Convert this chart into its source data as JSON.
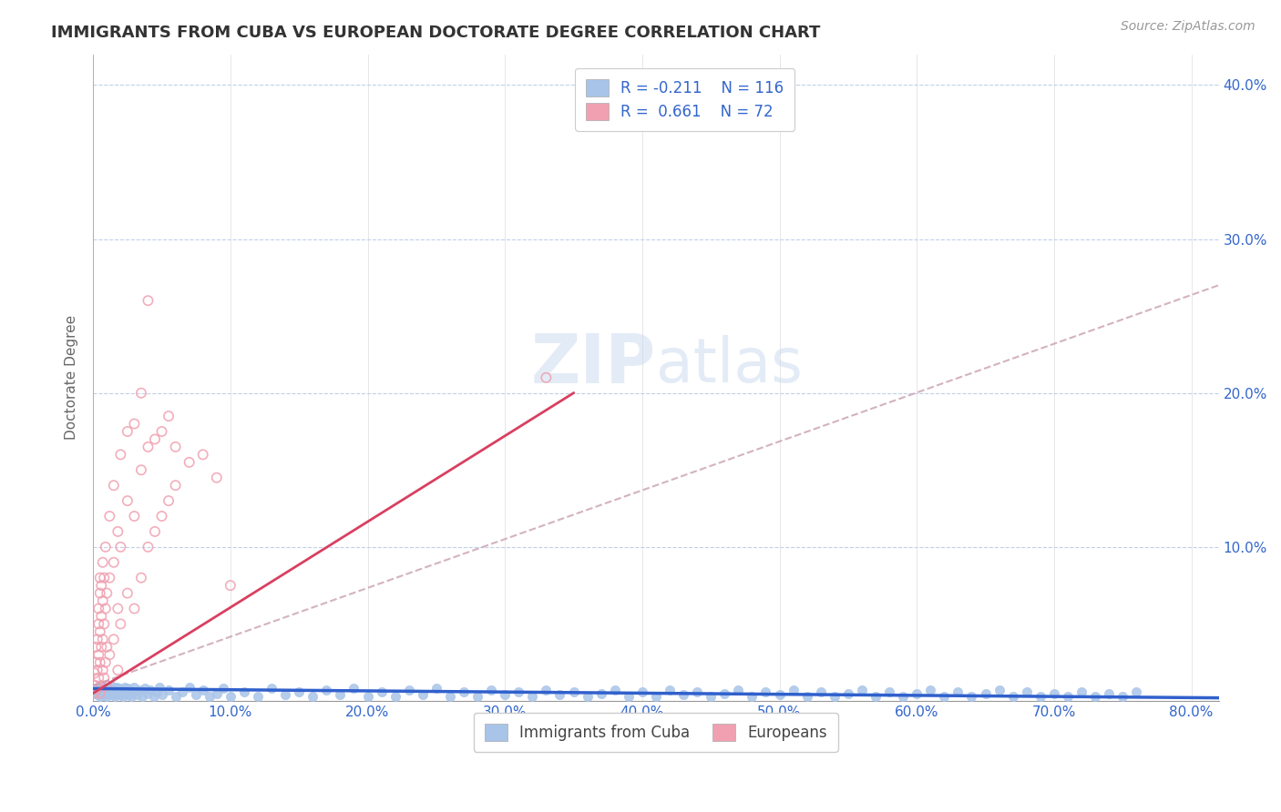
{
  "title": "IMMIGRANTS FROM CUBA VS EUROPEAN DOCTORATE DEGREE CORRELATION CHART",
  "source": "Source: ZipAtlas.com",
  "ylabel": "Doctorate Degree",
  "xlim": [
    0.0,
    0.82
  ],
  "ylim": [
    0.0,
    0.42
  ],
  "xticks": [
    0.0,
    0.1,
    0.2,
    0.3,
    0.4,
    0.5,
    0.6,
    0.7,
    0.8
  ],
  "yticks_right": [
    0.0,
    0.1,
    0.2,
    0.3,
    0.4
  ],
  "ytick_labels_right": [
    "",
    "10.0%",
    "20.0%",
    "30.0%",
    "40.0%"
  ],
  "xtick_labels": [
    "0.0%",
    "10.0%",
    "20.0%",
    "30.0%",
    "40.0%",
    "50.0%",
    "60.0%",
    "70.0%",
    "80.0%"
  ],
  "legend_labels": [
    "Immigrants from Cuba",
    "Europeans"
  ],
  "legend_R": [
    -0.211,
    0.661
  ],
  "legend_N": [
    116,
    72
  ],
  "blue_color": "#a8c4e8",
  "pink_color": "#f0a0b0",
  "trend_blue_color": "#3060cc",
  "trend_pink_color": "#d84060",
  "trend_dashed_color": "#c8a0b0",
  "grid_color": "#c0d0e8",
  "background_color": "#ffffff",
  "watermark_text": "ZIPatlas",
  "title_color": "#333333",
  "axis_label_color": "#3366cc",
  "scatter_blue": [
    [
      0.001,
      0.005
    ],
    [
      0.002,
      0.008
    ],
    [
      0.003,
      0.004
    ],
    [
      0.004,
      0.007
    ],
    [
      0.005,
      0.003
    ],
    [
      0.005,
      0.01
    ],
    [
      0.006,
      0.006
    ],
    [
      0.007,
      0.009
    ],
    [
      0.008,
      0.004
    ],
    [
      0.009,
      0.007
    ],
    [
      0.01,
      0.003
    ],
    [
      0.011,
      0.008
    ],
    [
      0.012,
      0.005
    ],
    [
      0.013,
      0.01
    ],
    [
      0.014,
      0.004
    ],
    [
      0.015,
      0.007
    ],
    [
      0.016,
      0.003
    ],
    [
      0.017,
      0.009
    ],
    [
      0.018,
      0.005
    ],
    [
      0.019,
      0.008
    ],
    [
      0.02,
      0.004
    ],
    [
      0.021,
      0.007
    ],
    [
      0.022,
      0.003
    ],
    [
      0.023,
      0.009
    ],
    [
      0.024,
      0.005
    ],
    [
      0.025,
      0.008
    ],
    [
      0.026,
      0.004
    ],
    [
      0.027,
      0.007
    ],
    [
      0.028,
      0.003
    ],
    [
      0.029,
      0.006
    ],
    [
      0.03,
      0.009
    ],
    [
      0.032,
      0.004
    ],
    [
      0.034,
      0.007
    ],
    [
      0.036,
      0.003
    ],
    [
      0.038,
      0.008
    ],
    [
      0.04,
      0.005
    ],
    [
      0.042,
      0.007
    ],
    [
      0.044,
      0.003
    ],
    [
      0.046,
      0.006
    ],
    [
      0.048,
      0.009
    ],
    [
      0.05,
      0.004
    ],
    [
      0.055,
      0.007
    ],
    [
      0.06,
      0.003
    ],
    [
      0.065,
      0.006
    ],
    [
      0.07,
      0.009
    ],
    [
      0.075,
      0.004
    ],
    [
      0.08,
      0.007
    ],
    [
      0.085,
      0.003
    ],
    [
      0.09,
      0.005
    ],
    [
      0.095,
      0.008
    ],
    [
      0.1,
      0.003
    ],
    [
      0.11,
      0.006
    ],
    [
      0.12,
      0.003
    ],
    [
      0.13,
      0.008
    ],
    [
      0.14,
      0.004
    ],
    [
      0.15,
      0.006
    ],
    [
      0.16,
      0.003
    ],
    [
      0.17,
      0.007
    ],
    [
      0.18,
      0.004
    ],
    [
      0.19,
      0.008
    ],
    [
      0.2,
      0.003
    ],
    [
      0.21,
      0.006
    ],
    [
      0.22,
      0.003
    ],
    [
      0.23,
      0.007
    ],
    [
      0.24,
      0.004
    ],
    [
      0.25,
      0.008
    ],
    [
      0.26,
      0.003
    ],
    [
      0.27,
      0.006
    ],
    [
      0.28,
      0.003
    ],
    [
      0.29,
      0.007
    ],
    [
      0.3,
      0.004
    ],
    [
      0.31,
      0.006
    ],
    [
      0.32,
      0.003
    ],
    [
      0.33,
      0.007
    ],
    [
      0.34,
      0.004
    ],
    [
      0.35,
      0.006
    ],
    [
      0.36,
      0.003
    ],
    [
      0.37,
      0.005
    ],
    [
      0.38,
      0.007
    ],
    [
      0.39,
      0.003
    ],
    [
      0.4,
      0.006
    ],
    [
      0.41,
      0.003
    ],
    [
      0.42,
      0.007
    ],
    [
      0.43,
      0.004
    ],
    [
      0.44,
      0.006
    ],
    [
      0.45,
      0.003
    ],
    [
      0.46,
      0.005
    ],
    [
      0.47,
      0.007
    ],
    [
      0.48,
      0.003
    ],
    [
      0.49,
      0.006
    ],
    [
      0.5,
      0.004
    ],
    [
      0.51,
      0.007
    ],
    [
      0.52,
      0.003
    ],
    [
      0.53,
      0.006
    ],
    [
      0.54,
      0.003
    ],
    [
      0.55,
      0.005
    ],
    [
      0.56,
      0.007
    ],
    [
      0.57,
      0.003
    ],
    [
      0.58,
      0.006
    ],
    [
      0.59,
      0.003
    ],
    [
      0.6,
      0.005
    ],
    [
      0.61,
      0.007
    ],
    [
      0.62,
      0.003
    ],
    [
      0.63,
      0.006
    ],
    [
      0.64,
      0.003
    ],
    [
      0.65,
      0.005
    ],
    [
      0.66,
      0.007
    ],
    [
      0.67,
      0.003
    ],
    [
      0.68,
      0.006
    ],
    [
      0.69,
      0.003
    ],
    [
      0.7,
      0.005
    ],
    [
      0.71,
      0.003
    ],
    [
      0.72,
      0.006
    ],
    [
      0.73,
      0.003
    ],
    [
      0.74,
      0.005
    ],
    [
      0.75,
      0.003
    ],
    [
      0.76,
      0.006
    ]
  ],
  "scatter_pink": [
    [
      0.001,
      0.005
    ],
    [
      0.001,
      0.018
    ],
    [
      0.002,
      0.01
    ],
    [
      0.002,
      0.025
    ],
    [
      0.002,
      0.035
    ],
    [
      0.003,
      0.008
    ],
    [
      0.003,
      0.02
    ],
    [
      0.003,
      0.04
    ],
    [
      0.004,
      0.015
    ],
    [
      0.004,
      0.03
    ],
    [
      0.004,
      0.05
    ],
    [
      0.004,
      0.06
    ],
    [
      0.005,
      0.005
    ],
    [
      0.005,
      0.025
    ],
    [
      0.005,
      0.045
    ],
    [
      0.005,
      0.07
    ],
    [
      0.005,
      0.08
    ],
    [
      0.006,
      0.01
    ],
    [
      0.006,
      0.035
    ],
    [
      0.006,
      0.055
    ],
    [
      0.006,
      0.075
    ],
    [
      0.007,
      0.02
    ],
    [
      0.007,
      0.04
    ],
    [
      0.007,
      0.065
    ],
    [
      0.007,
      0.09
    ],
    [
      0.008,
      0.015
    ],
    [
      0.008,
      0.05
    ],
    [
      0.008,
      0.08
    ],
    [
      0.009,
      0.025
    ],
    [
      0.009,
      0.06
    ],
    [
      0.009,
      0.1
    ],
    [
      0.01,
      0.01
    ],
    [
      0.01,
      0.035
    ],
    [
      0.01,
      0.07
    ],
    [
      0.012,
      0.03
    ],
    [
      0.012,
      0.08
    ],
    [
      0.012,
      0.12
    ],
    [
      0.015,
      0.04
    ],
    [
      0.015,
      0.09
    ],
    [
      0.015,
      0.14
    ],
    [
      0.018,
      0.02
    ],
    [
      0.018,
      0.06
    ],
    [
      0.018,
      0.11
    ],
    [
      0.02,
      0.05
    ],
    [
      0.02,
      0.1
    ],
    [
      0.02,
      0.16
    ],
    [
      0.025,
      0.07
    ],
    [
      0.025,
      0.13
    ],
    [
      0.025,
      0.175
    ],
    [
      0.03,
      0.06
    ],
    [
      0.03,
      0.12
    ],
    [
      0.03,
      0.18
    ],
    [
      0.035,
      0.08
    ],
    [
      0.035,
      0.15
    ],
    [
      0.035,
      0.2
    ],
    [
      0.04,
      0.1
    ],
    [
      0.04,
      0.165
    ],
    [
      0.04,
      0.26
    ],
    [
      0.045,
      0.11
    ],
    [
      0.045,
      0.17
    ],
    [
      0.05,
      0.12
    ],
    [
      0.05,
      0.175
    ],
    [
      0.055,
      0.13
    ],
    [
      0.055,
      0.185
    ],
    [
      0.06,
      0.14
    ],
    [
      0.06,
      0.165
    ],
    [
      0.07,
      0.155
    ],
    [
      0.08,
      0.16
    ],
    [
      0.09,
      0.145
    ],
    [
      0.1,
      0.075
    ],
    [
      0.33,
      0.21
    ]
  ],
  "blue_trend_x": [
    0.0,
    0.82
  ],
  "blue_trend_y": [
    0.008,
    0.002
  ],
  "pink_trend_x": [
    0.0,
    0.35
  ],
  "pink_trend_y": [
    0.005,
    0.2
  ],
  "dashed_trend_x": [
    0.0,
    0.82
  ],
  "dashed_trend_y": [
    0.01,
    0.27
  ]
}
